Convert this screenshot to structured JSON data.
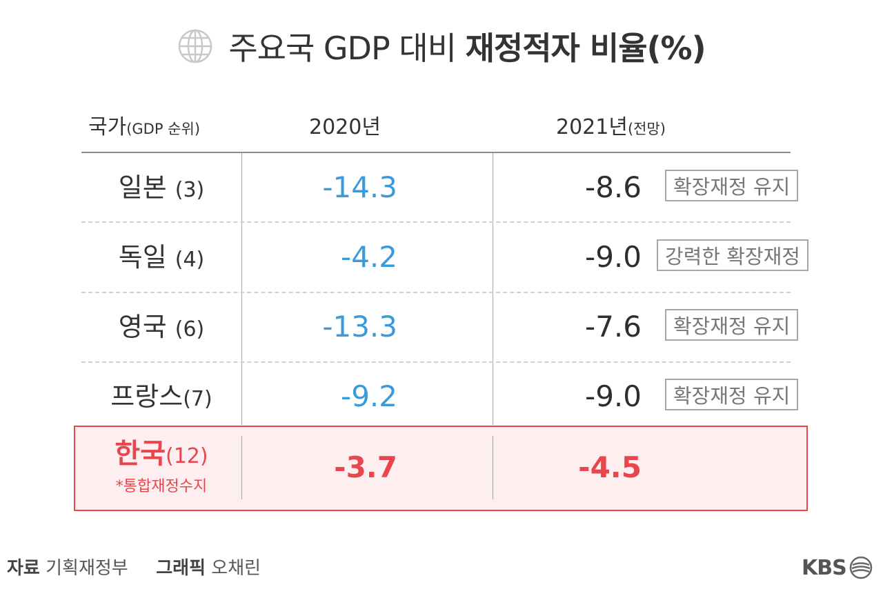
{
  "header": {
    "title_plain": "주요국 GDP 대비",
    "title_bold": "재정적자 비율(%)"
  },
  "columns": {
    "country": "국가",
    "country_note": "(GDP 순위)",
    "y2020": "2020년",
    "y2021": "2021년",
    "y2021_note": "(전망)"
  },
  "chart_data": {
    "type": "table",
    "title": "주요국 GDP 대비 재정적자 비율(%)",
    "columns": [
      "국가(GDP 순위)",
      "2020년",
      "2021년(전망)"
    ],
    "rows": [
      {
        "country": "일본",
        "rank": "(3)",
        "v2020": "-14.3",
        "v2021": "-8.6",
        "note": "확장재정 유지"
      },
      {
        "country": "독일",
        "rank": "(4)",
        "v2020": "-4.2",
        "v2021": "-9.0",
        "note": "강력한 확장재정"
      },
      {
        "country": "영국",
        "rank": "(6)",
        "v2020": "-13.3",
        "v2021": "-7.6",
        "note": "확장재정 유지"
      },
      {
        "country": "프랑스",
        "rank": "(7)",
        "v2020": "-9.2",
        "v2021": "-9.0",
        "note": "확장재정 유지"
      }
    ],
    "highlight": {
      "country": "한국",
      "rank": "(12)",
      "sub_note": "*통합재정수지",
      "v2020": "-3.7",
      "v2021": "-4.5"
    }
  },
  "footer": {
    "source_label": "자료",
    "source": "기획재정부",
    "graphic_label": "그래픽",
    "graphic": "오채린",
    "brand": "KBS"
  },
  "colors": {
    "value_2020": "#3b9ad9",
    "highlight": "#e8464c",
    "highlight_bg": "#fdeef0"
  }
}
